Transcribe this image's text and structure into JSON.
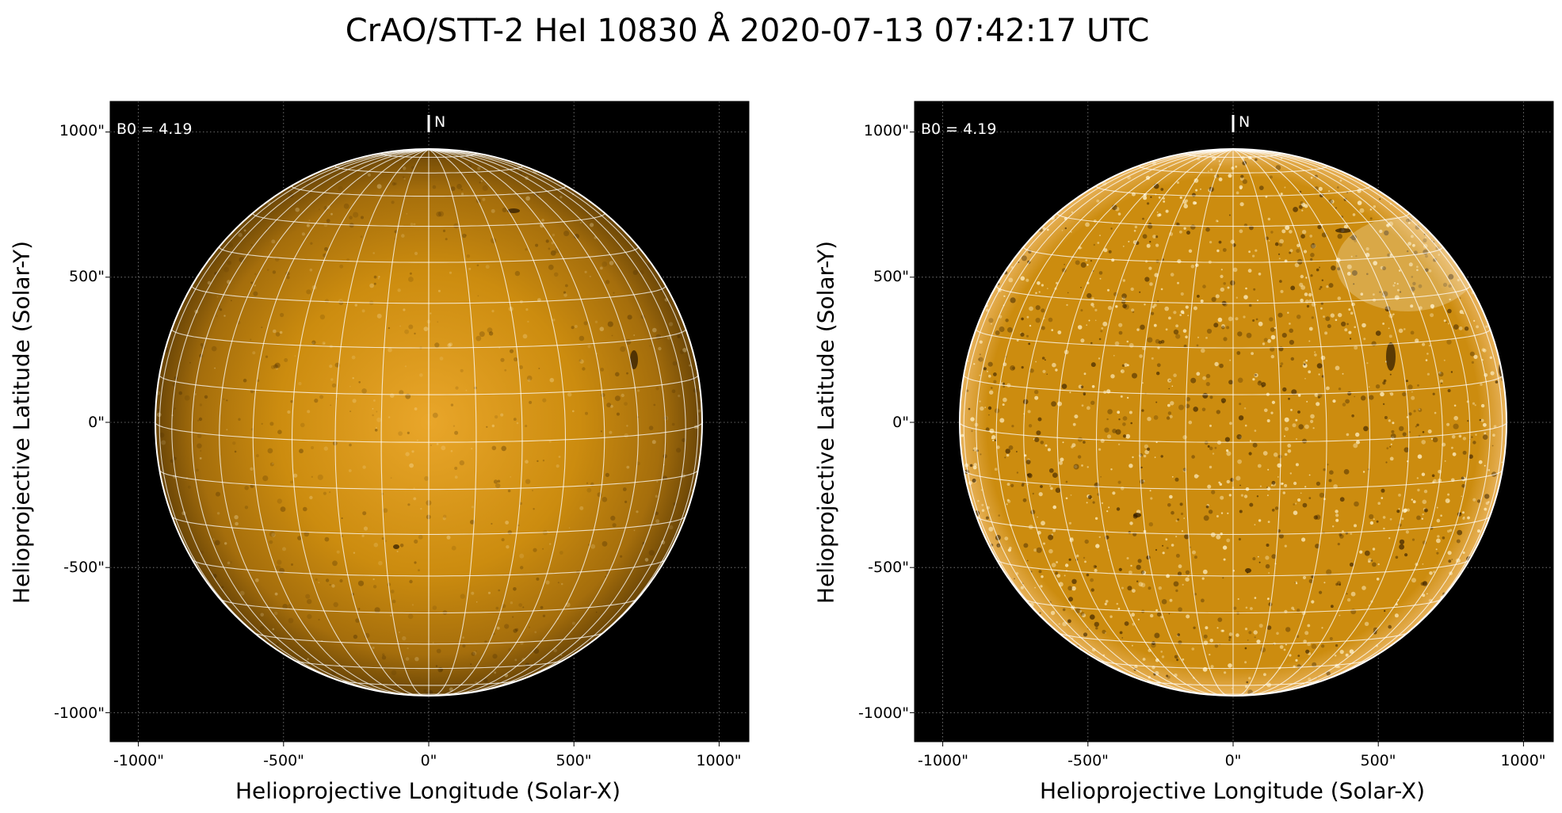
{
  "title": "CrAO/STT-2 HeI 10830 Å 2020-07-13 07:42:17 UTC",
  "colors": {
    "disk_center": "#e9a62a",
    "disk_mid": "#cc8c0f",
    "disk_limb": "#6a4506",
    "background": "#000000",
    "grid": "#ffffff"
  },
  "panels": [
    {
      "name": "left",
      "variant": "limb-darkened",
      "ylabel": "Helioprojective Latitude (Solar-Y)",
      "xlabel": "Helioprojective Longitude (Solar-X)",
      "xticks": [
        "-1000\"",
        "-500\"",
        "0\"",
        "500\"",
        "1000\""
      ],
      "yticks": [
        "1000\"",
        "500\"",
        "0\"",
        "-500\"",
        "-1000\""
      ],
      "b0_label": "B0 = 4.19",
      "north_label": "N"
    },
    {
      "name": "right",
      "variant": "limb-corrected",
      "ylabel": "Helioprojective Latitude (Solar-Y)",
      "xlabel": "Helioprojective Longitude (Solar-X)",
      "xticks": [
        "-1000\"",
        "-500\"",
        "0\"",
        "500\"",
        "1000\""
      ],
      "yticks": [
        "1000\"",
        "500\"",
        "0\"",
        "-500\"",
        "-1000\""
      ],
      "b0_label": "B0 = 4.19",
      "north_label": "N"
    }
  ]
}
